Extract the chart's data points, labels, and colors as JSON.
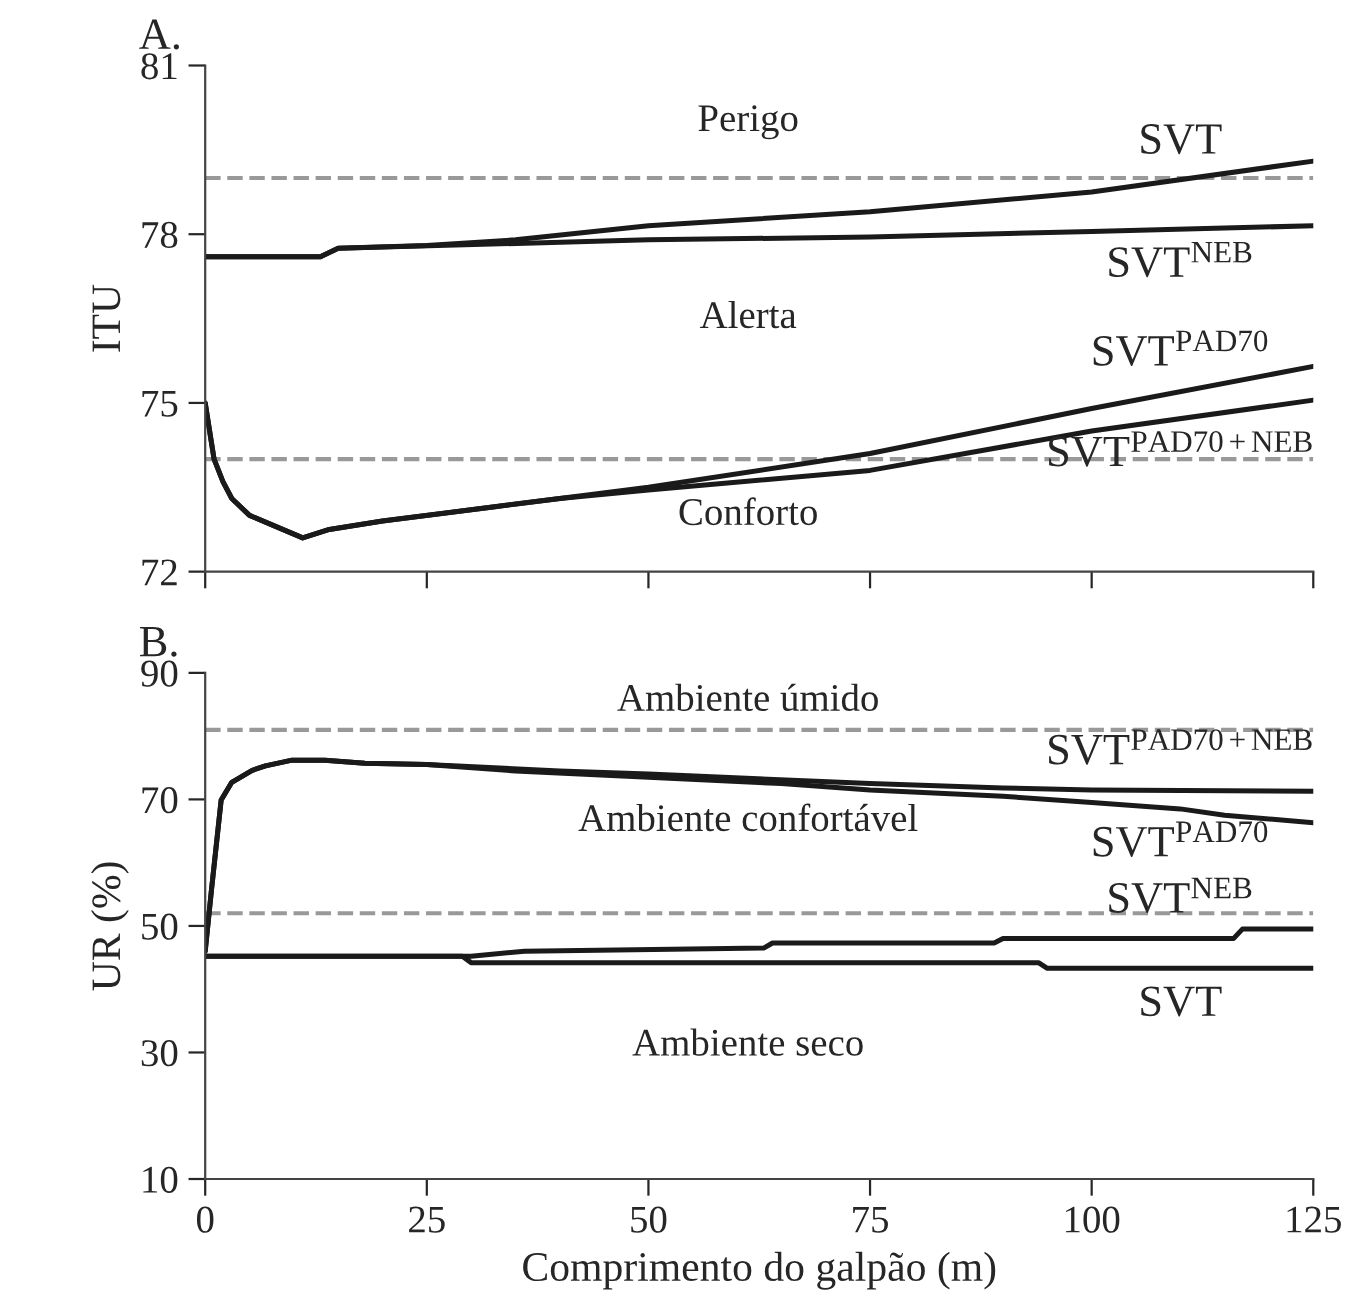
{
  "chart_data": [
    {
      "type": "line",
      "title": "A.",
      "ylabel": "ITU",
      "xlim": [
        0,
        125
      ],
      "xticks": [
        0,
        25,
        50,
        75,
        100,
        125
      ],
      "ylim": [
        72,
        81
      ],
      "yticks": [
        72,
        75,
        78,
        81
      ],
      "tick_labels": "y",
      "legend": false,
      "grid": false,
      "marker": "none",
      "line_style": "solid",
      "ref_lines": [
        {
          "axis": "y",
          "value": 79,
          "color": "#999999",
          "line_style": "dashed"
        },
        {
          "axis": "y",
          "value": 74,
          "color": "#999999",
          "line_style": "dashed"
        }
      ],
      "annotations": [
        "Perigo",
        "Alerta",
        "Conforto"
      ],
      "series": [
        {
          "name": "SVT",
          "color": "#1a1a1a",
          "x": [
            0,
            13,
            15,
            25,
            35,
            50,
            75,
            100,
            125
          ],
          "values": [
            77.6,
            77.6,
            77.75,
            77.8,
            77.9,
            78.15,
            78.4,
            78.75,
            79.3
          ]
        },
        {
          "name": "SVT$^{NEB}$",
          "color": "#1a1a1a",
          "x": [
            0,
            13,
            15,
            50,
            75,
            100,
            125
          ],
          "values": [
            77.6,
            77.6,
            77.75,
            77.9,
            77.95,
            78.05,
            78.15
          ]
        },
        {
          "name": "SVT$^{PAD70}$",
          "color": "#1a1a1a",
          "x": [
            0,
            0.5,
            1,
            2,
            3,
            5,
            8,
            11,
            14,
            20,
            30,
            40,
            50,
            75,
            100,
            125
          ],
          "values": [
            75,
            74.5,
            74,
            73.6,
            73.3,
            73.0,
            72.8,
            72.6,
            72.75,
            72.9,
            73.1,
            73.3,
            73.5,
            74.1,
            74.9,
            75.65
          ]
        },
        {
          "name": "SVT$^{PAD70+NEB}$",
          "color": "#1a1a1a",
          "x": [
            0,
            0.5,
            1,
            2,
            3,
            5,
            8,
            11,
            14,
            20,
            30,
            40,
            50,
            75,
            100,
            125
          ],
          "values": [
            75,
            74.5,
            74,
            73.6,
            73.3,
            73.0,
            72.8,
            72.6,
            72.75,
            72.9,
            73.1,
            73.3,
            73.45,
            73.8,
            74.5,
            75.05
          ]
        }
      ]
    },
    {
      "type": "line",
      "title": "B.",
      "ylabel": "UR (%)",
      "xlabel": "Comprimento do galpão (m)",
      "xlim": [
        0,
        125
      ],
      "xticks": [
        0,
        25,
        50,
        75,
        100,
        125
      ],
      "ylim": [
        10,
        90
      ],
      "yticks": [
        10,
        30,
        50,
        70,
        90
      ],
      "legend": false,
      "grid": false,
      "marker": "none",
      "line_style": "solid",
      "ref_lines": [
        {
          "axis": "y",
          "value": 81,
          "color": "#999999",
          "line_style": "dashed"
        },
        {
          "axis": "y",
          "value": 52,
          "color": "#999999",
          "line_style": "dashed"
        }
      ],
      "annotations": [
        "Ambiente úmido",
        "Ambiente confortável",
        "Ambiente seco"
      ],
      "series": [
        {
          "name": "SVT$^{PAD70+NEB}$",
          "color": "#1a1a1a",
          "x": [
            0,
            0.7,
            1.8,
            3,
            5.3,
            6.8,
            9.8,
            13.5,
            18,
            25,
            40,
            50,
            75,
            90,
            100,
            125
          ],
          "values": [
            46,
            55.6,
            69.9,
            72.7,
            74.6,
            75.3,
            76.2,
            76.2,
            75.7,
            75.5,
            74.5,
            74,
            72.5,
            71.8,
            71.5,
            71.3
          ]
        },
        {
          "name": "SVT$^{PAD70}$",
          "color": "#1a1a1a",
          "x": [
            0,
            0.7,
            1.8,
            3,
            5.3,
            6.8,
            9.8,
            13.5,
            18,
            25,
            35,
            50,
            65,
            75,
            90,
            100,
            110,
            115,
            125
          ],
          "values": [
            46,
            55.6,
            69.9,
            72.7,
            74.6,
            75.3,
            76.2,
            76.2,
            75.7,
            75.5,
            74.5,
            73.5,
            72.5,
            71.5,
            70.5,
            69.5,
            68.5,
            67.5,
            66.3
          ]
        },
        {
          "name": "SVT$^{NEB}$",
          "color": "#1a1a1a",
          "x": [
            0,
            30,
            36,
            63,
            64,
            89,
            90,
            116,
            117,
            125
          ],
          "values": [
            45.2,
            45.2,
            46,
            46.5,
            47.3,
            47.3,
            48,
            48,
            49.5,
            49.5
          ]
        },
        {
          "name": "SVT",
          "color": "#1a1a1a",
          "x": [
            0,
            29,
            30,
            94,
            95,
            125
          ],
          "values": [
            45.2,
            45.2,
            44.2,
            44.2,
            43.3,
            43.3
          ]
        }
      ]
    }
  ]
}
